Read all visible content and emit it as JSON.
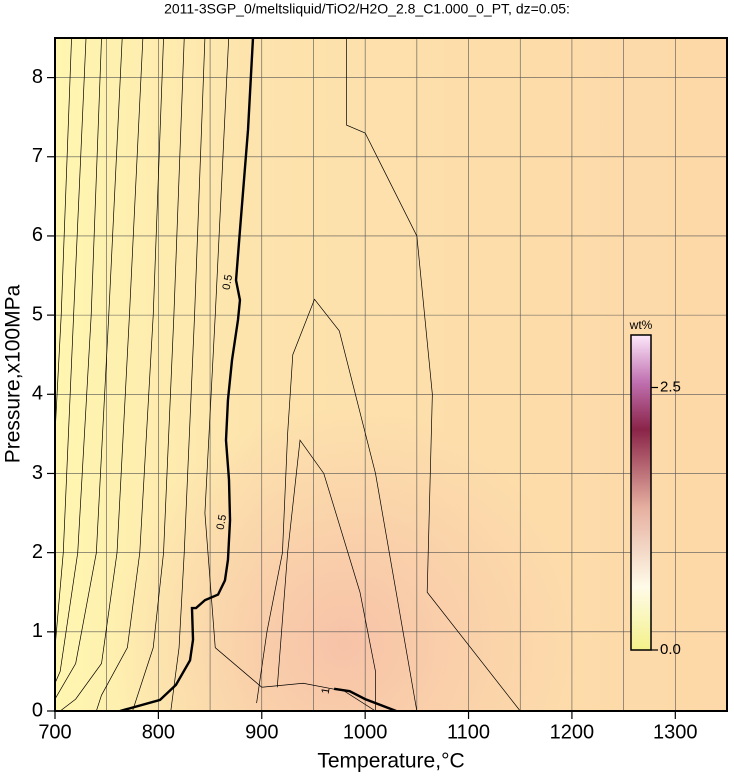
{
  "chart_data": {
    "type": "contour",
    "title": "2011-3SGP_0/meltsliquid/TiO2/H2O_2.8_C1.000_0_PT, dz=0.05:",
    "xlabel": "Temperature,°C",
    "ylabel": "Pressure,x100MPa",
    "xlim": [
      700,
      1350
    ],
    "ylim": [
      0,
      8.5
    ],
    "xticks": [
      700,
      800,
      900,
      1000,
      1100,
      1200,
      1300
    ],
    "yticks": [
      0,
      1,
      2,
      3,
      4,
      5,
      6,
      7,
      8
    ],
    "xgrid": [
      750,
      800,
      850,
      900,
      950,
      1000,
      1050,
      1100,
      1150,
      1200,
      1250,
      1300
    ],
    "grid": true,
    "contours": [
      {
        "level": 0.5,
        "x": [
          891.5,
          886.7,
          878.9,
          875.1,
          878.9,
          877.0,
          871.2,
          867.3,
          865.4,
          868.3,
          869.3,
          867.3,
          864.4,
          857.7,
          845.1,
          836.4,
          832.5,
          833.5,
          830.6,
          817.0,
          801.6,
          762.9
        ],
        "y": [
          8.5,
          7.34,
          6.07,
          5.44,
          5.19,
          4.94,
          4.43,
          3.93,
          3.42,
          2.92,
          2.41,
          1.91,
          1.65,
          1.47,
          1.4,
          1.3,
          1.3,
          0.9,
          0.64,
          0.33,
          0.14,
          0
        ]
      },
      {
        "level": 1,
        "x": [
          970,
          985,
          1000,
          1030
        ],
        "y": [
          0.28,
          0.25,
          0.15,
          0
        ]
      },
      {
        "x": [
          716,
          706,
          700
        ],
        "y": [
          8.5,
          5,
          3.5
        ]
      },
      {
        "x": [
          730,
          718,
          708,
          700
        ],
        "y": [
          8.5,
          5,
          2,
          0.8
        ]
      },
      {
        "x": [
          745,
          735,
          722,
          705,
          700
        ],
        "y": [
          8.5,
          5,
          2,
          0.5,
          0.35
        ]
      },
      {
        "x": [
          765,
          752,
          740,
          720,
          700
        ],
        "y": [
          8.5,
          5,
          2,
          0.6,
          0.15
        ]
      },
      {
        "x": [
          785,
          772,
          760,
          745,
          720,
          705
        ],
        "y": [
          8.5,
          5,
          2,
          0.6,
          0.15,
          0
        ]
      },
      {
        "x": [
          805,
          795,
          782,
          770,
          745,
          740
        ],
        "y": [
          8.5,
          5,
          2,
          0.8,
          0.2,
          0
        ]
      },
      {
        "x": [
          825,
          815,
          805,
          795,
          780,
          775
        ],
        "y": [
          8.5,
          5,
          2,
          0.8,
          0.2,
          0
        ]
      },
      {
        "x": [
          845,
          835,
          825,
          820,
          812
        ],
        "y": [
          8.5,
          5,
          2,
          0.8,
          0
        ]
      },
      {
        "x": [
          868,
          855,
          845,
          855,
          900,
          940,
          980,
          1010
        ],
        "y": [
          8.5,
          5,
          2.5,
          0.8,
          0.3,
          0.35,
          0.25,
          0
        ]
      },
      {
        "x": [
          982,
          982,
          1000,
          1050,
          1065,
          1060,
          1150
        ],
        "y": [
          8.5,
          7.4,
          7.3,
          6,
          4,
          1.5,
          0
        ]
      },
      {
        "x": [
          895,
          905,
          920,
          925,
          930,
          951,
          975,
          1010,
          1030,
          1050
        ],
        "y": [
          0.1,
          1,
          2,
          3.5,
          4.5,
          5.2,
          4.8,
          3,
          1.5,
          0
        ]
      },
      {
        "x": [
          915,
          925,
          937,
          960,
          995,
          1010,
          1010
        ],
        "y": [
          0.3,
          2,
          3.42,
          3,
          1.5,
          0.5,
          0
        ]
      }
    ],
    "colorbar": {
      "label": "wt%",
      "lim": [
        0,
        3
      ],
      "ticks": [
        {
          "value": 0,
          "label": "0.0"
        },
        2.5
      ]
    }
  }
}
